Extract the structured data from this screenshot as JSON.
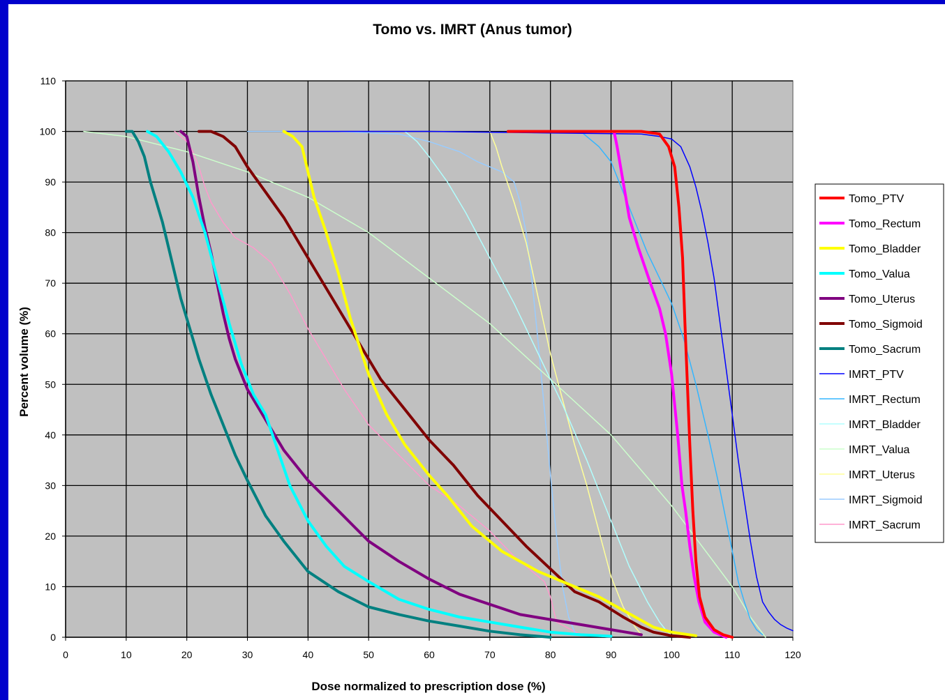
{
  "chart_data": {
    "type": "line",
    "title": "Tomo vs. IMRT (Anus tumor)",
    "xlabel": "Dose normalized to prescription dose (%)",
    "ylabel": "Percent volume (%)",
    "xlim": [
      0,
      120
    ],
    "ylim": [
      0,
      110
    ],
    "xticks": [
      "0",
      "10",
      "20",
      "30",
      "40",
      "50",
      "60",
      "70",
      "80",
      "90",
      "100",
      "110",
      "120"
    ],
    "yticks": [
      "0",
      "10",
      "20",
      "30",
      "40",
      "50",
      "60",
      "70",
      "80",
      "90",
      "100",
      "110"
    ],
    "grid": true,
    "plot_background": "#c0c0c0",
    "legend_position": "right",
    "series": [
      {
        "name": "Tomo_PTV",
        "color": "#ff0000",
        "width": 4,
        "x": [
          73,
          90,
          95,
          98,
          99.5,
          100.5,
          101.2,
          101.8,
          102.2,
          102.6,
          103,
          103.5,
          104,
          104.6,
          105.5,
          107,
          108.5,
          110
        ],
        "y": [
          100,
          100,
          100,
          99.5,
          97,
          93,
          85,
          75,
          62,
          50,
          38,
          25,
          15,
          8,
          4,
          1.5,
          0.5,
          0
        ]
      },
      {
        "name": "Tomo_Rectum",
        "color": "#ff00ff",
        "width": 4,
        "x": [
          90.5,
          91,
          92,
          93,
          94.5,
          96.5,
          98,
          99,
          100,
          101,
          101.7,
          102.3,
          103,
          103.7,
          104.5,
          105.5,
          107,
          109
        ],
        "y": [
          100,
          97,
          90,
          83,
          77,
          70,
          65,
          60,
          52,
          40,
          30,
          25,
          18,
          12,
          7,
          3,
          1,
          0
        ]
      },
      {
        "name": "Tomo_Bladder",
        "color": "#ffff00",
        "width": 4,
        "x": [
          36,
          37.5,
          39,
          40,
          41,
          43,
          45,
          47,
          50,
          53,
          56,
          60,
          63,
          67,
          72,
          78,
          84,
          88,
          91,
          94,
          97,
          100,
          104
        ],
        "y": [
          100,
          99,
          97,
          92,
          87,
          80,
          72,
          63,
          52,
          44,
          38,
          32,
          28,
          22,
          17,
          13,
          10,
          8,
          6,
          4,
          2,
          1,
          0.3
        ]
      },
      {
        "name": "Tomo_Valua",
        "color": "#00ffff",
        "width": 4,
        "x": [
          13.5,
          15,
          17,
          19,
          21,
          23,
          25,
          27,
          29,
          31,
          33,
          35,
          37,
          40,
          43,
          46,
          50,
          55,
          60,
          65,
          70,
          75,
          80,
          85,
          90
        ],
        "y": [
          100,
          99,
          96,
          92,
          87,
          80,
          71,
          62,
          54,
          48,
          44,
          37,
          30,
          23,
          18,
          14,
          11,
          7.5,
          5.5,
          4,
          3,
          2,
          1,
          0.5,
          0.2
        ]
      },
      {
        "name": "Tomo_Uterus",
        "color": "#800080",
        "width": 4,
        "x": [
          19,
          20,
          21,
          22,
          23,
          24,
          25,
          26,
          27,
          28,
          30,
          33,
          36,
          40,
          45,
          50,
          55,
          60,
          65,
          70,
          75,
          80,
          85,
          90,
          95
        ],
        "y": [
          100,
          99,
          94,
          87,
          81,
          76,
          70,
          64,
          59,
          55,
          49,
          43,
          37,
          31,
          25,
          19,
          15,
          11.5,
          8.5,
          6.5,
          4.5,
          3.5,
          2.5,
          1.5,
          0.5
        ]
      },
      {
        "name": "Tomo_Sigmoid",
        "color": "#800000",
        "width": 4,
        "x": [
          22,
          24,
          26,
          28,
          30,
          33,
          36,
          40,
          44,
          48,
          52,
          56,
          60,
          64,
          68,
          72,
          76,
          80,
          84,
          88,
          92,
          95,
          97,
          100,
          103
        ],
        "y": [
          100,
          100,
          99,
          97,
          93,
          88,
          83,
          75,
          67,
          59,
          51,
          45,
          39,
          34,
          28,
          23,
          18,
          13.5,
          9,
          7,
          4,
          2,
          1,
          0.3,
          0
        ]
      },
      {
        "name": "Tomo_Sacrum",
        "color": "#008080",
        "width": 4,
        "x": [
          10,
          11,
          12,
          13,
          14,
          15,
          16,
          17,
          18,
          19,
          20,
          22,
          24,
          26,
          28,
          30,
          33,
          36,
          40,
          45,
          50,
          55,
          60,
          65,
          70,
          75,
          80
        ],
        "y": [
          100,
          100,
          98,
          95,
          90,
          86,
          82,
          77,
          72,
          67,
          63,
          55,
          48,
          42,
          36,
          31,
          24,
          19,
          13,
          9,
          6,
          4.5,
          3.2,
          2.2,
          1.2,
          0.5,
          0
        ]
      },
      {
        "name": "IMRT_PTV",
        "color": "#0000ff",
        "width": 1.5,
        "x": [
          36,
          60,
          80,
          95,
          98,
          100,
          101.5,
          103,
          104,
          105,
          106,
          107,
          108,
          109,
          110,
          111,
          112,
          113,
          114,
          115,
          116,
          117,
          118,
          119,
          120
        ],
        "y": [
          100,
          100,
          99.7,
          99.5,
          99,
          98.5,
          97,
          93,
          89,
          84,
          78,
          71,
          62,
          53,
          44,
          35,
          27,
          19,
          12,
          7,
          5,
          3.5,
          2.5,
          1.8,
          1.3
        ]
      },
      {
        "name": "IMRT_Rectum",
        "color": "#33b5ff",
        "width": 1.5,
        "x": [
          85,
          86,
          88,
          90,
          92,
          94,
          96,
          98,
          100,
          102,
          104,
          106,
          108,
          110,
          111,
          112,
          113,
          114,
          115
        ],
        "y": [
          100,
          99,
          97,
          94,
          88,
          82,
          76,
          71,
          66,
          59,
          50,
          40,
          29,
          17,
          11,
          7,
          3.5,
          1.5,
          0.5
        ]
      },
      {
        "name": "IMRT_Bladder",
        "color": "#b0ffff",
        "width": 1.5,
        "x": [
          56,
          58,
          60,
          63,
          66,
          70,
          74,
          78,
          82,
          86,
          90,
          93,
          96,
          98,
          99,
          100
        ],
        "y": [
          100,
          98,
          95,
          90,
          84,
          75,
          66,
          56,
          46,
          35,
          23,
          14,
          7,
          3,
          1.5,
          0.3
        ]
      },
      {
        "name": "IMRT_Valua",
        "color": "#ccffcc",
        "width": 1.5,
        "x": [
          3,
          10,
          20,
          30,
          40,
          50,
          60,
          70,
          80,
          90,
          95,
          100,
          105,
          110,
          113,
          115.5
        ],
        "y": [
          100,
          99,
          96,
          92,
          87,
          80,
          71,
          62,
          51,
          40,
          33,
          26,
          18,
          10,
          4,
          0
        ]
      },
      {
        "name": "IMRT_Uterus",
        "color": "#ffff99",
        "width": 1.5,
        "x": [
          70,
          71,
          72,
          74,
          76,
          78,
          80,
          82,
          84,
          86,
          88,
          90,
          92,
          94,
          95
        ],
        "y": [
          100,
          97,
          93,
          86,
          78,
          67,
          56,
          47,
          38,
          30,
          21,
          12,
          6,
          2,
          0.5
        ]
      },
      {
        "name": "IMRT_Sigmoid",
        "color": "#99ccff",
        "width": 1.5,
        "x": [
          30,
          45,
          55,
          60,
          65,
          68,
          70,
          72,
          73,
          74,
          75,
          76,
          77,
          78,
          79,
          80,
          81,
          82,
          83,
          84
        ],
        "y": [
          100,
          100,
          99.5,
          98,
          96,
          94,
          93,
          92,
          91,
          90,
          86,
          80,
          70,
          58,
          45,
          32,
          20,
          10,
          4,
          1
        ]
      },
      {
        "name": "IMRT_Sacrum",
        "color": "#ff99cc",
        "width": 1.5,
        "x": [
          18,
          19,
          20,
          21,
          22,
          23,
          24,
          26,
          28,
          31,
          34,
          37,
          40,
          43,
          46,
          50,
          55,
          60,
          65,
          70,
          74,
          77,
          79,
          80,
          81,
          85,
          90
        ],
        "y": [
          100,
          99,
          98,
          96,
          93,
          89,
          86,
          82,
          79,
          77,
          74,
          68,
          61,
          55,
          49,
          42,
          36,
          30,
          26,
          21,
          16,
          13,
          11,
          8,
          3,
          0.5,
          0
        ]
      }
    ]
  }
}
